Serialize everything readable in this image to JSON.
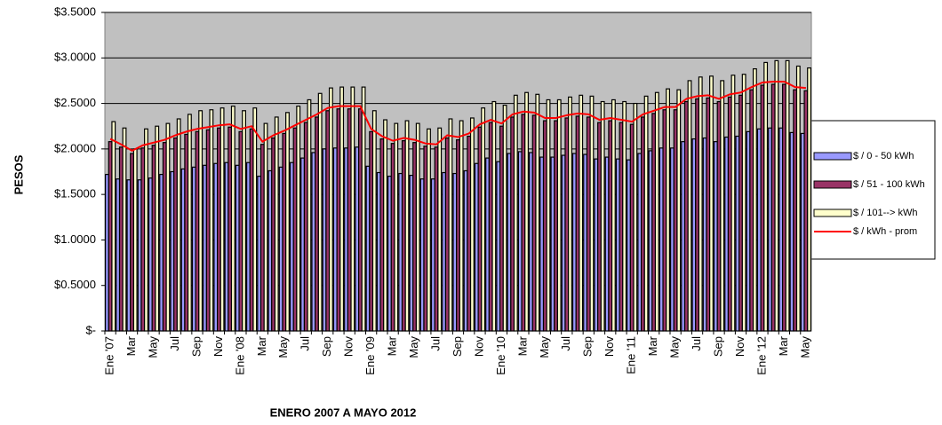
{
  "chart_data": {
    "type": "bar",
    "xlabel": "ENERO 2007 A  MAYO 2012",
    "ylabel": "PESOS",
    "categories": [
      "Ene '07",
      null,
      "Mar",
      null,
      "May",
      null,
      "Jul",
      null,
      "Sep",
      null,
      "Nov",
      null,
      "Ene '08",
      null,
      "Mar",
      null,
      "May",
      null,
      "Jul",
      null,
      "Sep",
      null,
      "Nov",
      null,
      "Ene '09",
      null,
      "Mar",
      null,
      "May",
      null,
      "Jul",
      null,
      "Sep",
      null,
      "Nov",
      null,
      "Ene '10",
      null,
      "Mar",
      null,
      "May",
      null,
      "Jul",
      null,
      "Sep",
      null,
      "Nov",
      null,
      "Ene '11",
      null,
      "Mar",
      null,
      "May",
      null,
      "Jul",
      null,
      "Sep",
      null,
      "Nov",
      null,
      "Ene '12",
      null,
      "Mar",
      null,
      "May"
    ],
    "series": [
      {
        "name": "$ / 0 - 50 kWh",
        "color": "#9999ff",
        "values": [
          1.72,
          1.67,
          1.66,
          1.66,
          1.68,
          1.72,
          1.75,
          1.78,
          1.8,
          1.82,
          1.84,
          1.85,
          1.82,
          1.85,
          1.7,
          1.76,
          1.8,
          1.85,
          1.9,
          1.96,
          2.0,
          2.01,
          2.01,
          2.02,
          1.81,
          1.74,
          1.7,
          1.73,
          1.71,
          1.67,
          1.67,
          1.74,
          1.73,
          1.76,
          1.84,
          1.9,
          1.86,
          1.95,
          1.97,
          1.96,
          1.91,
          1.91,
          1.93,
          1.95,
          1.94,
          1.89,
          1.91,
          1.89,
          1.88,
          1.95,
          1.98,
          2.01,
          2.01,
          2.08,
          2.11,
          2.12,
          2.08,
          2.13,
          2.14,
          2.19,
          2.22,
          2.23,
          2.23,
          2.18,
          2.17
        ]
      },
      {
        "name": "$ / 51 - 100 kWh",
        "color": "#993366",
        "values": [
          2.08,
          2.02,
          1.95,
          2.01,
          2.04,
          2.07,
          2.12,
          2.16,
          2.19,
          2.21,
          2.23,
          2.24,
          2.19,
          2.22,
          2.05,
          2.12,
          2.17,
          2.23,
          2.29,
          2.35,
          2.42,
          2.44,
          2.44,
          2.44,
          2.19,
          2.11,
          2.06,
          2.09,
          2.07,
          2.03,
          2.02,
          2.12,
          2.1,
          2.14,
          2.24,
          2.29,
          2.25,
          2.35,
          2.38,
          2.37,
          2.31,
          2.31,
          2.34,
          2.36,
          2.35,
          2.29,
          2.31,
          2.29,
          2.27,
          2.35,
          2.39,
          2.43,
          2.43,
          2.52,
          2.55,
          2.56,
          2.52,
          2.57,
          2.59,
          2.65,
          2.7,
          2.71,
          2.71,
          2.65,
          2.64
        ]
      },
      {
        "name": "$ / 101--> kWh",
        "color": "#ffffcc",
        "values": [
          2.3,
          2.23,
          2.0,
          2.22,
          2.25,
          2.28,
          2.33,
          2.38,
          2.42,
          2.43,
          2.45,
          2.47,
          2.42,
          2.45,
          2.28,
          2.35,
          2.4,
          2.47,
          2.54,
          2.61,
          2.67,
          2.68,
          2.68,
          2.68,
          2.42,
          2.32,
          2.28,
          2.31,
          2.28,
          2.22,
          2.23,
          2.33,
          2.31,
          2.34,
          2.45,
          2.52,
          2.48,
          2.59,
          2.62,
          2.6,
          2.54,
          2.54,
          2.57,
          2.59,
          2.58,
          2.52,
          2.54,
          2.52,
          2.5,
          2.58,
          2.62,
          2.66,
          2.65,
          2.75,
          2.79,
          2.8,
          2.75,
          2.81,
          2.82,
          2.88,
          2.95,
          2.97,
          2.97,
          2.91,
          2.89
        ]
      },
      {
        "name": "$ / kWh -  prom",
        "color": "#ff0000",
        "kind": "line",
        "values": [
          2.11,
          2.05,
          1.98,
          2.04,
          2.07,
          2.1,
          2.15,
          2.19,
          2.22,
          2.24,
          2.26,
          2.27,
          2.22,
          2.25,
          2.08,
          2.15,
          2.2,
          2.26,
          2.32,
          2.38,
          2.45,
          2.47,
          2.47,
          2.47,
          2.22,
          2.14,
          2.09,
          2.12,
          2.1,
          2.06,
          2.05,
          2.15,
          2.13,
          2.17,
          2.27,
          2.32,
          2.28,
          2.38,
          2.41,
          2.4,
          2.34,
          2.34,
          2.37,
          2.39,
          2.38,
          2.32,
          2.34,
          2.32,
          2.3,
          2.38,
          2.42,
          2.46,
          2.46,
          2.55,
          2.58,
          2.59,
          2.55,
          2.6,
          2.62,
          2.68,
          2.73,
          2.74,
          2.74,
          2.68,
          2.67
        ]
      }
    ],
    "ylim": [
      0,
      3.5
    ],
    "yticks": [
      {
        "value": 0,
        "label": "$-"
      },
      {
        "value": 0.5,
        "label": "$0.5000"
      },
      {
        "value": 1,
        "label": "$1.0000"
      },
      {
        "value": 1.5,
        "label": "$1.5000"
      },
      {
        "value": 2,
        "label": "$2.0000"
      },
      {
        "value": 2.5,
        "label": "$2.5000"
      },
      {
        "value": 3,
        "label": "$3.0000"
      },
      {
        "value": 3.5,
        "label": "$3.5000"
      }
    ],
    "grid": true,
    "legend": "right",
    "plot_background": "#c0c0c0"
  }
}
